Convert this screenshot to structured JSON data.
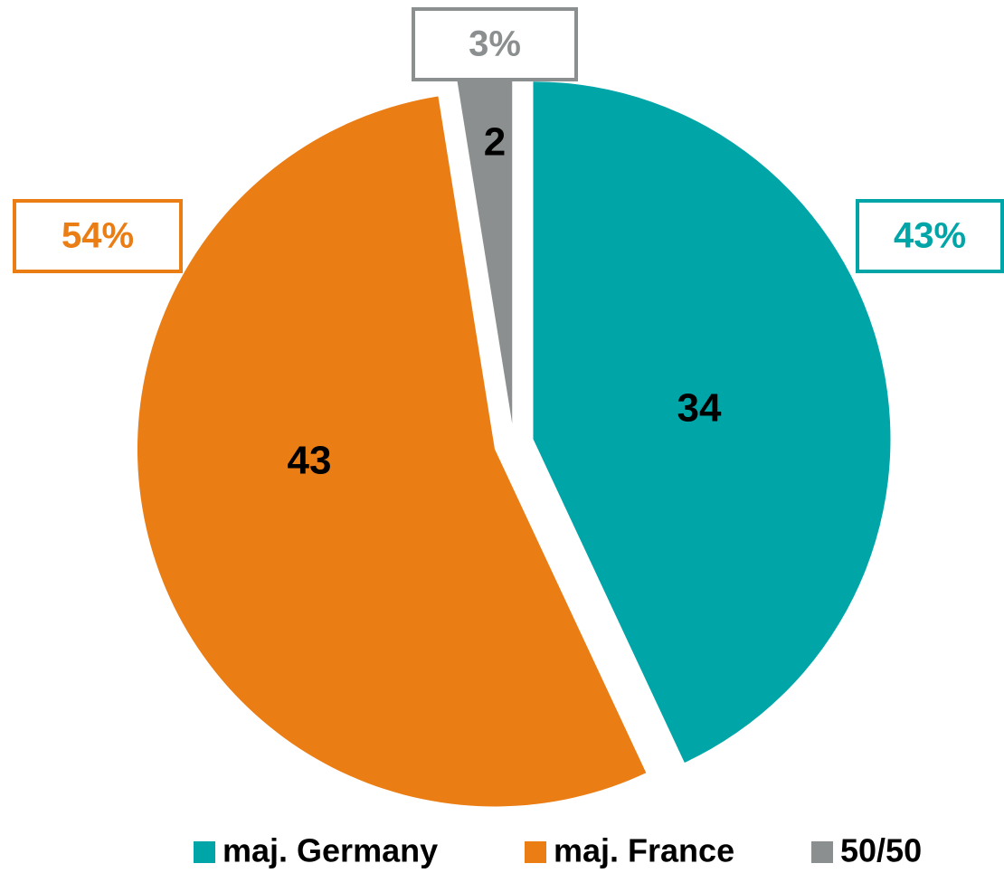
{
  "chart_data": {
    "type": "pie",
    "categories": [
      "maj. Germany",
      "maj. France",
      "50/50"
    ],
    "values": [
      34,
      43,
      2
    ],
    "colors": [
      "#00a5a8",
      "#ea7d14",
      "#8c8f90"
    ],
    "percent_labels": [
      "43%",
      "54%",
      "3%"
    ],
    "legend": "bottom"
  }
}
